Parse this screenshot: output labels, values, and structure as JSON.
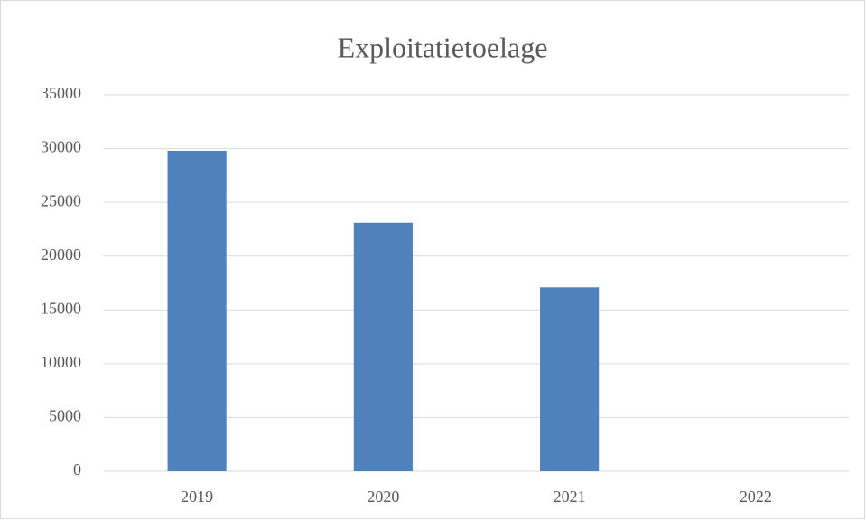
{
  "chart_data": {
    "type": "bar",
    "title": "Exploitatietoelage",
    "categories": [
      "2019",
      "2020",
      "2021",
      "2022"
    ],
    "values": [
      29800,
      23100,
      17100,
      0
    ],
    "color": "#4f81bd",
    "ylim": [
      0,
      35000
    ],
    "yticks": [
      0,
      5000,
      10000,
      15000,
      20000,
      25000,
      30000,
      35000
    ],
    "grid": true
  }
}
